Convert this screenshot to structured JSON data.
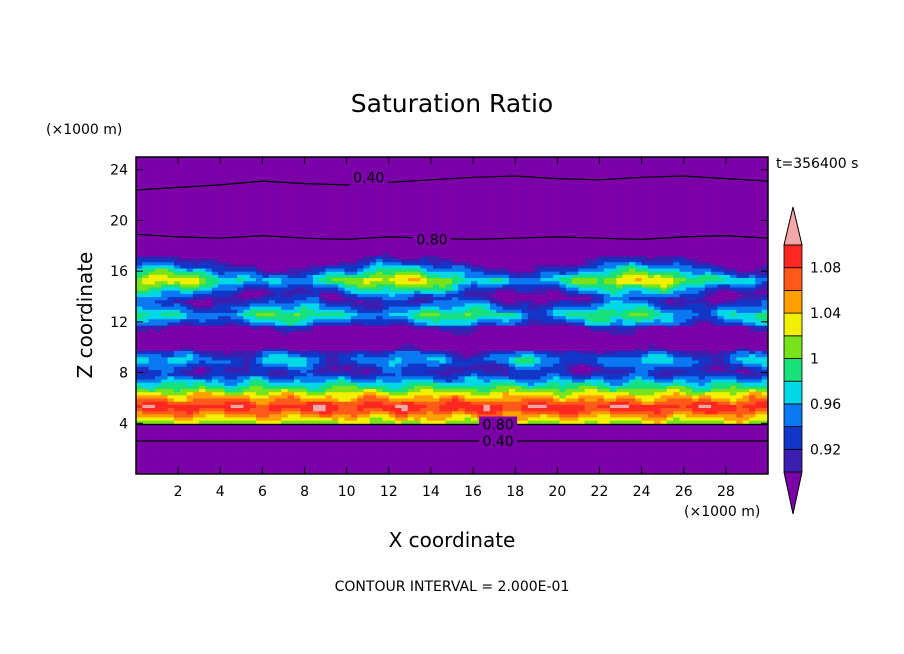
{
  "chart_data": {
    "type": "heatmap",
    "title": "Saturation Ratio",
    "xlabel": "X coordinate",
    "ylabel": "Z coordinate",
    "x_unit": "(×1000 m)",
    "y_unit": "(×1000 m)",
    "time_label": "t=356400 s",
    "footer": "CONTOUR INTERVAL = 2.000E-01",
    "xlim": [
      0,
      30
    ],
    "ylim": [
      0,
      25
    ],
    "x_ticks": [
      "2",
      "4",
      "6",
      "8",
      "10",
      "12",
      "14",
      "16",
      "18",
      "20",
      "22",
      "24",
      "26",
      "28"
    ],
    "y_ticks": [
      "4",
      "8",
      "12",
      "16",
      "20",
      "24"
    ],
    "colorbar": {
      "levels": [
        0.9,
        0.92,
        0.94,
        0.96,
        0.98,
        1.0,
        1.02,
        1.04,
        1.06,
        1.08,
        1.1
      ],
      "labels": [
        "0.92",
        "0.96",
        "1",
        "1.04",
        "1.08"
      ],
      "colors": [
        "#7b00a8",
        "#3a1fb0",
        "#1236c8",
        "#0a78f0",
        "#00d8e8",
        "#18e07a",
        "#78e21a",
        "#f0f000",
        "#ffa000",
        "#ff5a1a",
        "#ff2820",
        "#f4a8a8"
      ]
    },
    "contours": [
      {
        "label": "0.40",
        "z_km": [
          22.4,
          22.6,
          22.8,
          23.1,
          22.9,
          22.8,
          23.0,
          23.2,
          23.4,
          23.5,
          23.3,
          23.2,
          23.4,
          23.5,
          23.3,
          23.1
        ]
      },
      {
        "label": "0.80",
        "z_km": [
          18.9,
          18.7,
          18.6,
          18.8,
          18.6,
          18.5,
          18.7,
          18.6,
          18.5,
          18.6,
          18.7,
          18.6,
          18.5,
          18.7,
          18.8,
          18.6
        ]
      },
      {
        "label": "0.80",
        "z_km": [
          3.9,
          3.9,
          3.9,
          3.9,
          3.9,
          3.9,
          3.9,
          3.9
        ]
      },
      {
        "label": "0.40",
        "z_km": [
          2.6,
          2.6,
          2.6,
          2.6,
          2.6,
          2.6,
          2.6,
          2.6
        ]
      }
    ]
  }
}
